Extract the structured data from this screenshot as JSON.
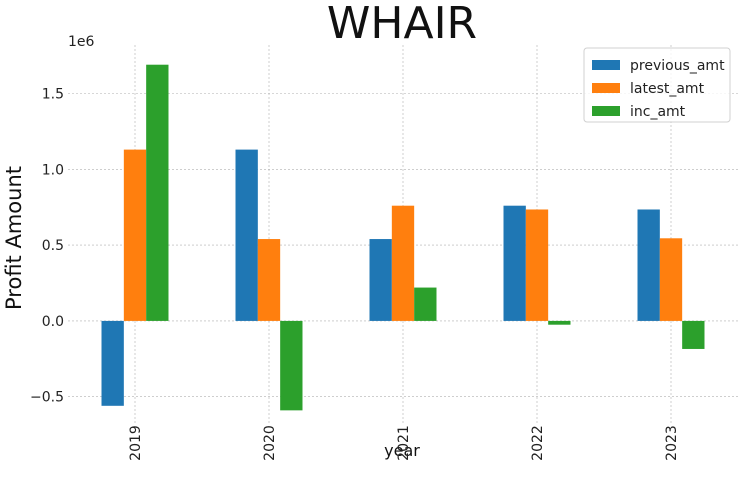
{
  "chart_data": {
    "type": "bar",
    "title": "WHAIR",
    "xlabel": "year",
    "ylabel": "Profit Amount",
    "y_offset_label": "1e6",
    "categories": [
      "2019",
      "2020",
      "2021",
      "2022",
      "2023"
    ],
    "series": [
      {
        "name": "previous_amt",
        "color": "#1f77b4",
        "values": [
          -560000,
          1130000,
          540000,
          760000,
          735000
        ]
      },
      {
        "name": "latest_amt",
        "color": "#ff7f0e",
        "values": [
          1130000,
          540000,
          760000,
          735000,
          545000
        ]
      },
      {
        "name": "inc_amt",
        "color": "#2ca02c",
        "values": [
          1690000,
          -590000,
          220000,
          -25000,
          -185000
        ]
      }
    ],
    "ylim": [
      -0.68,
      1.82
    ],
    "y_ticks": [
      -0.5,
      0.0,
      0.5,
      1.0,
      1.5
    ],
    "y_tick_labels": [
      "−0.5",
      "0.0",
      "0.5",
      "1.0",
      "1.5"
    ],
    "y_scale_factor": 1000000,
    "grid": true,
    "legend_position": "top-right"
  }
}
